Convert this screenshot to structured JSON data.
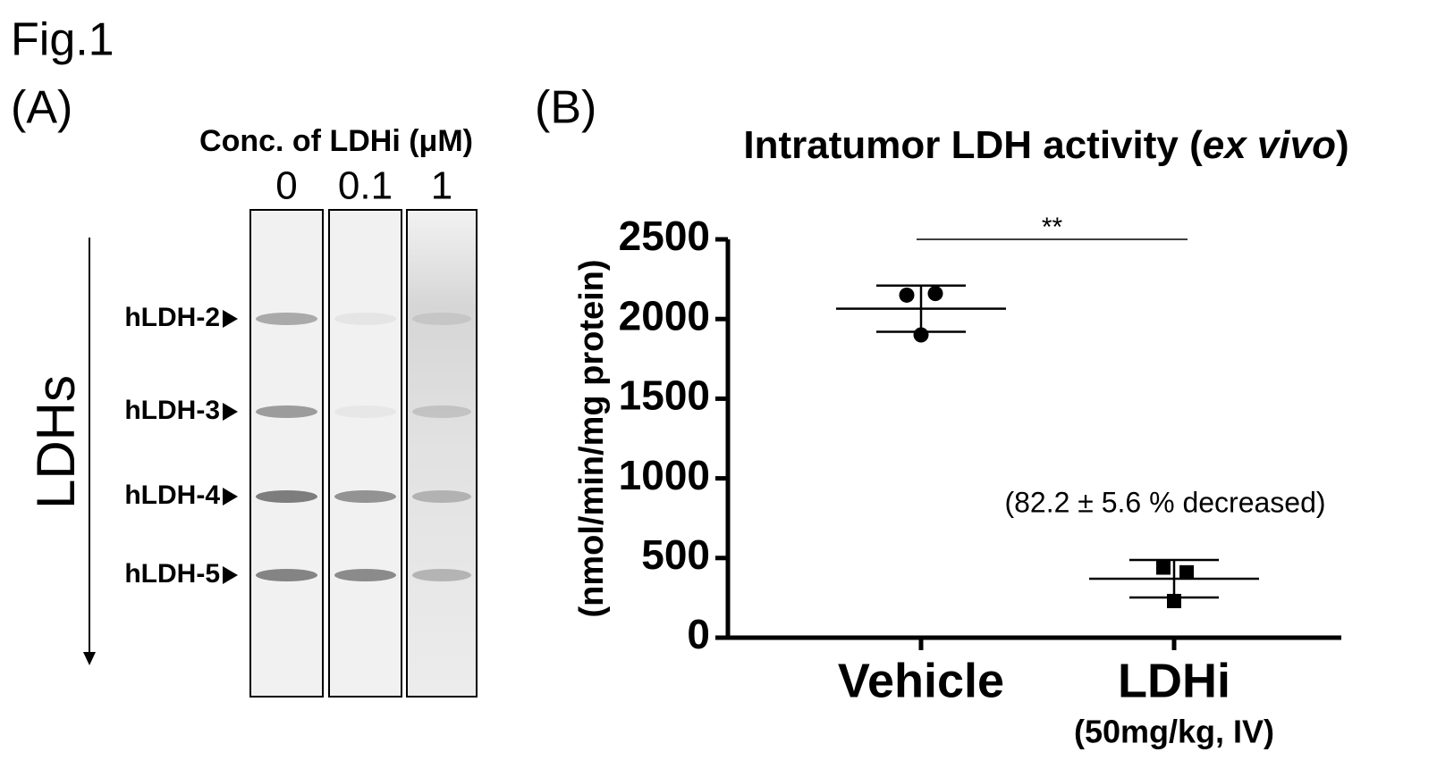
{
  "figure_label": "Fig.1",
  "panel_a": {
    "label": "(A)",
    "conc_label": "Conc. of LDHi (μM)",
    "lanes": [
      "0",
      "0.1",
      "1"
    ],
    "bands": [
      "hLDH-2",
      "hLDH-3",
      "hLDH-4",
      "hLDH-5"
    ],
    "axis_label": "LDHs"
  },
  "panel_b": {
    "label": "(B)"
  },
  "chart_data": {
    "type": "dotplot",
    "title": [
      "Intratumor LDH activity (",
      "ex vivo",
      ")"
    ],
    "y_label": "(nmol/min/mg protein)",
    "categories": [
      "Vehicle",
      "LDHi"
    ],
    "category_notes": [
      null,
      "(50mg/kg, IV)"
    ],
    "markers": [
      "circle",
      "square"
    ],
    "points": [
      [
        2150,
        2160,
        1900
      ],
      [
        440,
        410,
        230
      ]
    ],
    "mean": [
      2065,
      370
    ],
    "sd": [
      145,
      118
    ],
    "ylim": [
      0,
      2500
    ],
    "yticks": [
      0,
      500,
      1000,
      1500,
      2000,
      2500
    ],
    "significance": {
      "label": "**",
      "y": 2500
    },
    "annotation": "(82.2 ± 5.6 % decreased)",
    "color": "#000000"
  }
}
